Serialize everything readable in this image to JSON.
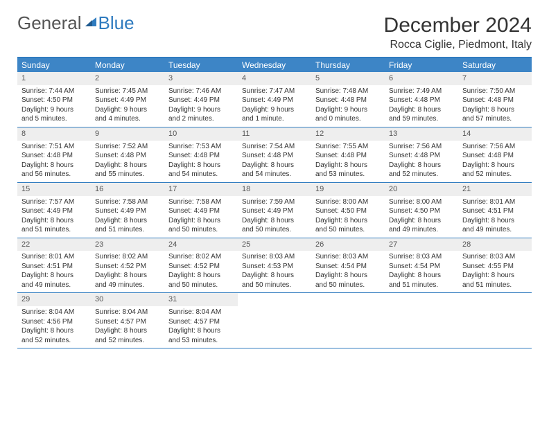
{
  "logo": {
    "text1": "General",
    "text2": "Blue"
  },
  "header": {
    "month_title": "December 2024",
    "location": "Rocca Ciglie, Piedmont, Italy"
  },
  "colors": {
    "header_bar": "#3d85c6",
    "border": "#2f7bbf",
    "daynum_bg": "#eeeeee",
    "text": "#333333",
    "logo_general": "#555555",
    "logo_blue": "#2f7bbf"
  },
  "weekdays": [
    "Sunday",
    "Monday",
    "Tuesday",
    "Wednesday",
    "Thursday",
    "Friday",
    "Saturday"
  ],
  "weeks": [
    [
      {
        "n": "1",
        "sr": "Sunrise: 7:44 AM",
        "ss": "Sunset: 4:50 PM",
        "dl1": "Daylight: 9 hours",
        "dl2": "and 5 minutes."
      },
      {
        "n": "2",
        "sr": "Sunrise: 7:45 AM",
        "ss": "Sunset: 4:49 PM",
        "dl1": "Daylight: 9 hours",
        "dl2": "and 4 minutes."
      },
      {
        "n": "3",
        "sr": "Sunrise: 7:46 AM",
        "ss": "Sunset: 4:49 PM",
        "dl1": "Daylight: 9 hours",
        "dl2": "and 2 minutes."
      },
      {
        "n": "4",
        "sr": "Sunrise: 7:47 AM",
        "ss": "Sunset: 4:49 PM",
        "dl1": "Daylight: 9 hours",
        "dl2": "and 1 minute."
      },
      {
        "n": "5",
        "sr": "Sunrise: 7:48 AM",
        "ss": "Sunset: 4:48 PM",
        "dl1": "Daylight: 9 hours",
        "dl2": "and 0 minutes."
      },
      {
        "n": "6",
        "sr": "Sunrise: 7:49 AM",
        "ss": "Sunset: 4:48 PM",
        "dl1": "Daylight: 8 hours",
        "dl2": "and 59 minutes."
      },
      {
        "n": "7",
        "sr": "Sunrise: 7:50 AM",
        "ss": "Sunset: 4:48 PM",
        "dl1": "Daylight: 8 hours",
        "dl2": "and 57 minutes."
      }
    ],
    [
      {
        "n": "8",
        "sr": "Sunrise: 7:51 AM",
        "ss": "Sunset: 4:48 PM",
        "dl1": "Daylight: 8 hours",
        "dl2": "and 56 minutes."
      },
      {
        "n": "9",
        "sr": "Sunrise: 7:52 AM",
        "ss": "Sunset: 4:48 PM",
        "dl1": "Daylight: 8 hours",
        "dl2": "and 55 minutes."
      },
      {
        "n": "10",
        "sr": "Sunrise: 7:53 AM",
        "ss": "Sunset: 4:48 PM",
        "dl1": "Daylight: 8 hours",
        "dl2": "and 54 minutes."
      },
      {
        "n": "11",
        "sr": "Sunrise: 7:54 AM",
        "ss": "Sunset: 4:48 PM",
        "dl1": "Daylight: 8 hours",
        "dl2": "and 54 minutes."
      },
      {
        "n": "12",
        "sr": "Sunrise: 7:55 AM",
        "ss": "Sunset: 4:48 PM",
        "dl1": "Daylight: 8 hours",
        "dl2": "and 53 minutes."
      },
      {
        "n": "13",
        "sr": "Sunrise: 7:56 AM",
        "ss": "Sunset: 4:48 PM",
        "dl1": "Daylight: 8 hours",
        "dl2": "and 52 minutes."
      },
      {
        "n": "14",
        "sr": "Sunrise: 7:56 AM",
        "ss": "Sunset: 4:48 PM",
        "dl1": "Daylight: 8 hours",
        "dl2": "and 52 minutes."
      }
    ],
    [
      {
        "n": "15",
        "sr": "Sunrise: 7:57 AM",
        "ss": "Sunset: 4:49 PM",
        "dl1": "Daylight: 8 hours",
        "dl2": "and 51 minutes."
      },
      {
        "n": "16",
        "sr": "Sunrise: 7:58 AM",
        "ss": "Sunset: 4:49 PM",
        "dl1": "Daylight: 8 hours",
        "dl2": "and 51 minutes."
      },
      {
        "n": "17",
        "sr": "Sunrise: 7:58 AM",
        "ss": "Sunset: 4:49 PM",
        "dl1": "Daylight: 8 hours",
        "dl2": "and 50 minutes."
      },
      {
        "n": "18",
        "sr": "Sunrise: 7:59 AM",
        "ss": "Sunset: 4:49 PM",
        "dl1": "Daylight: 8 hours",
        "dl2": "and 50 minutes."
      },
      {
        "n": "19",
        "sr": "Sunrise: 8:00 AM",
        "ss": "Sunset: 4:50 PM",
        "dl1": "Daylight: 8 hours",
        "dl2": "and 50 minutes."
      },
      {
        "n": "20",
        "sr": "Sunrise: 8:00 AM",
        "ss": "Sunset: 4:50 PM",
        "dl1": "Daylight: 8 hours",
        "dl2": "and 49 minutes."
      },
      {
        "n": "21",
        "sr": "Sunrise: 8:01 AM",
        "ss": "Sunset: 4:51 PM",
        "dl1": "Daylight: 8 hours",
        "dl2": "and 49 minutes."
      }
    ],
    [
      {
        "n": "22",
        "sr": "Sunrise: 8:01 AM",
        "ss": "Sunset: 4:51 PM",
        "dl1": "Daylight: 8 hours",
        "dl2": "and 49 minutes."
      },
      {
        "n": "23",
        "sr": "Sunrise: 8:02 AM",
        "ss": "Sunset: 4:52 PM",
        "dl1": "Daylight: 8 hours",
        "dl2": "and 49 minutes."
      },
      {
        "n": "24",
        "sr": "Sunrise: 8:02 AM",
        "ss": "Sunset: 4:52 PM",
        "dl1": "Daylight: 8 hours",
        "dl2": "and 50 minutes."
      },
      {
        "n": "25",
        "sr": "Sunrise: 8:03 AM",
        "ss": "Sunset: 4:53 PM",
        "dl1": "Daylight: 8 hours",
        "dl2": "and 50 minutes."
      },
      {
        "n": "26",
        "sr": "Sunrise: 8:03 AM",
        "ss": "Sunset: 4:54 PM",
        "dl1": "Daylight: 8 hours",
        "dl2": "and 50 minutes."
      },
      {
        "n": "27",
        "sr": "Sunrise: 8:03 AM",
        "ss": "Sunset: 4:54 PM",
        "dl1": "Daylight: 8 hours",
        "dl2": "and 51 minutes."
      },
      {
        "n": "28",
        "sr": "Sunrise: 8:03 AM",
        "ss": "Sunset: 4:55 PM",
        "dl1": "Daylight: 8 hours",
        "dl2": "and 51 minutes."
      }
    ],
    [
      {
        "n": "29",
        "sr": "Sunrise: 8:04 AM",
        "ss": "Sunset: 4:56 PM",
        "dl1": "Daylight: 8 hours",
        "dl2": "and 52 minutes."
      },
      {
        "n": "30",
        "sr": "Sunrise: 8:04 AM",
        "ss": "Sunset: 4:57 PM",
        "dl1": "Daylight: 8 hours",
        "dl2": "and 52 minutes."
      },
      {
        "n": "31",
        "sr": "Sunrise: 8:04 AM",
        "ss": "Sunset: 4:57 PM",
        "dl1": "Daylight: 8 hours",
        "dl2": "and 53 minutes."
      },
      null,
      null,
      null,
      null
    ]
  ]
}
